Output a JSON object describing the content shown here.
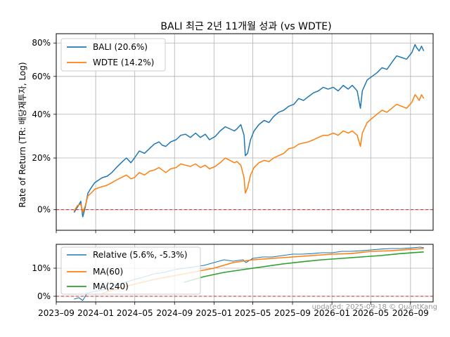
{
  "figure": {
    "title": "BALI 최근 2년 11개월 성과 (vs WDTE)",
    "watermark": "updated: 2025-09-18 © QuantKang"
  },
  "chart_data": [
    {
      "type": "line",
      "panel": "main",
      "ylabel": "Rate of Return (TR: 배당재투자, Log)",
      "yscale": "log(1+r)",
      "ylim": [
        -0.07,
        0.86
      ],
      "yticks": [
        0,
        0.2,
        0.4,
        0.6,
        0.8
      ],
      "ytick_labels": [
        "0%",
        "20%",
        "40%",
        "60%",
        "80%"
      ],
      "grid": true,
      "legend_position": "upper-left",
      "reference_line": {
        "y": 0,
        "color": "#d62728",
        "style": "dashed"
      },
      "series": [
        {
          "name": "BALI (20.6%)",
          "color": "#1f77b4",
          "x": [
            "2023-10-26",
            "2023-11-06",
            "2023-11-16",
            "2023-11-22",
            "2023-11-30",
            "2023-12-08",
            "2023-12-18",
            "2023-12-29",
            "2024-01-10",
            "2024-01-22",
            "2024-02-05",
            "2024-02-20",
            "2024-03-05",
            "2024-03-20",
            "2024-04-05",
            "2024-04-19",
            "2024-04-30",
            "2024-05-15",
            "2024-05-31",
            "2024-06-15",
            "2024-06-30",
            "2024-07-15",
            "2024-07-25",
            "2024-08-05",
            "2024-08-20",
            "2024-09-06",
            "2024-09-20",
            "2024-10-05",
            "2024-10-20",
            "2024-11-05",
            "2024-11-20",
            "2024-12-05",
            "2024-12-18",
            "2025-01-05",
            "2025-01-20",
            "2025-02-05",
            "2025-02-19",
            "2025-03-05",
            "2025-03-13",
            "2025-03-25",
            "2025-04-04",
            "2025-04-08",
            "2025-04-15",
            "2025-04-24",
            "2025-05-05",
            "2025-05-20",
            "2025-06-05",
            "2025-06-20",
            "2025-07-05",
            "2025-07-20",
            "2025-08-05",
            "2025-08-20",
            "2025-09-05",
            "2025-09-20",
            "2025-10-05",
            "2025-10-20",
            "2025-11-05",
            "2025-11-20",
            "2025-12-05",
            "2025-12-20",
            "2026-01-05",
            "2026-01-20",
            "2026-02-05",
            "2026-02-20",
            "2026-03-05",
            "2026-03-20",
            "2026-03-30",
            "2026-04-05",
            "2026-04-20",
            "2026-05-05",
            "2026-05-20",
            "2026-06-05",
            "2026-06-20",
            "2026-07-05",
            "2026-07-20",
            "2026-08-05",
            "2026-08-20",
            "2026-09-05",
            "2026-09-15",
            "2026-09-20",
            "2026-09-28",
            "2026-10-05",
            "2026-10-12"
          ],
          "values": [
            -0.01,
            0.01,
            0.03,
            -0.025,
            0.01,
            0.06,
            0.08,
            0.1,
            0.11,
            0.12,
            0.125,
            0.14,
            0.16,
            0.18,
            0.2,
            0.18,
            0.2,
            0.23,
            0.22,
            0.24,
            0.26,
            0.27,
            0.255,
            0.25,
            0.27,
            0.28,
            0.3,
            0.305,
            0.29,
            0.31,
            0.29,
            0.305,
            0.28,
            0.295,
            0.32,
            0.34,
            0.33,
            0.32,
            0.33,
            0.35,
            0.3,
            0.21,
            0.22,
            0.28,
            0.32,
            0.35,
            0.37,
            0.36,
            0.39,
            0.41,
            0.42,
            0.44,
            0.45,
            0.48,
            0.47,
            0.49,
            0.51,
            0.52,
            0.54,
            0.53,
            0.54,
            0.52,
            0.55,
            0.53,
            0.55,
            0.52,
            0.43,
            0.52,
            0.58,
            0.6,
            0.62,
            0.65,
            0.64,
            0.68,
            0.72,
            0.71,
            0.7,
            0.74,
            0.79,
            0.77,
            0.75,
            0.78,
            0.75
          ]
        },
        {
          "name": "WDTE (14.2%)",
          "color": "#ff7f0e",
          "x": [
            "2023-10-26",
            "2023-11-06",
            "2023-11-16",
            "2023-11-22",
            "2023-11-30",
            "2023-12-08",
            "2023-12-18",
            "2023-12-29",
            "2024-01-10",
            "2024-01-22",
            "2024-02-05",
            "2024-02-20",
            "2024-03-05",
            "2024-03-20",
            "2024-04-05",
            "2024-04-19",
            "2024-04-30",
            "2024-05-15",
            "2024-05-31",
            "2024-06-15",
            "2024-06-30",
            "2024-07-15",
            "2024-07-25",
            "2024-08-05",
            "2024-08-20",
            "2024-09-06",
            "2024-09-20",
            "2024-10-05",
            "2024-10-20",
            "2024-11-05",
            "2024-11-20",
            "2024-12-05",
            "2024-12-18",
            "2025-01-05",
            "2025-01-20",
            "2025-02-05",
            "2025-02-19",
            "2025-03-05",
            "2025-03-13",
            "2025-03-25",
            "2025-04-04",
            "2025-04-08",
            "2025-04-15",
            "2025-04-24",
            "2025-05-05",
            "2025-05-20",
            "2025-06-05",
            "2025-06-20",
            "2025-07-05",
            "2025-07-20",
            "2025-08-05",
            "2025-08-20",
            "2025-09-05",
            "2025-09-20",
            "2025-10-05",
            "2025-10-20",
            "2025-11-05",
            "2025-11-20",
            "2025-12-05",
            "2025-12-20",
            "2026-01-05",
            "2026-01-20",
            "2026-02-05",
            "2026-02-20",
            "2026-03-05",
            "2026-03-20",
            "2026-03-30",
            "2026-04-05",
            "2026-04-20",
            "2026-05-05",
            "2026-05-20",
            "2026-06-05",
            "2026-06-20",
            "2026-07-05",
            "2026-07-20",
            "2026-08-05",
            "2026-08-20",
            "2026-09-05",
            "2026-09-15",
            "2026-09-20",
            "2026-09-28",
            "2026-10-05",
            "2026-10-12"
          ],
          "values": [
            -0.005,
            0.015,
            0.02,
            -0.01,
            0.015,
            0.05,
            0.06,
            0.075,
            0.08,
            0.085,
            0.09,
            0.1,
            0.11,
            0.12,
            0.13,
            0.115,
            0.12,
            0.14,
            0.13,
            0.145,
            0.15,
            0.16,
            0.15,
            0.14,
            0.155,
            0.16,
            0.175,
            0.17,
            0.165,
            0.175,
            0.16,
            0.17,
            0.155,
            0.165,
            0.18,
            0.2,
            0.19,
            0.18,
            0.185,
            0.17,
            0.12,
            0.06,
            0.08,
            0.13,
            0.16,
            0.18,
            0.19,
            0.185,
            0.2,
            0.21,
            0.22,
            0.24,
            0.245,
            0.26,
            0.265,
            0.27,
            0.28,
            0.29,
            0.3,
            0.3,
            0.31,
            0.3,
            0.32,
            0.31,
            0.32,
            0.3,
            0.25,
            0.31,
            0.36,
            0.38,
            0.4,
            0.42,
            0.41,
            0.43,
            0.45,
            0.44,
            0.43,
            0.46,
            0.5,
            0.49,
            0.47,
            0.5,
            0.48
          ]
        }
      ]
    },
    {
      "type": "line",
      "panel": "relative",
      "ylim": [
        -0.02,
        0.185
      ],
      "yticks": [
        0,
        0.1
      ],
      "ytick_labels": [
        "0%",
        "10%"
      ],
      "xlim": [
        "2023-09-01",
        "2026-11-10"
      ],
      "xticks": [
        "2023-09-01",
        "2024-01-01",
        "2024-05-01",
        "2024-09-01",
        "2025-01-01",
        "2025-05-01",
        "2025-09-01",
        "2026-01-01",
        "2026-05-01",
        "2026-09-01"
      ],
      "xtick_labels": [
        "2023–09",
        "2024–01",
        "2024–05",
        "2024–09",
        "2025–01",
        "2025–05",
        "2025–09",
        "2026–01",
        "2026–05",
        "2026–09"
      ],
      "grid": true,
      "legend_position": "upper-left",
      "reference_line": {
        "y": 0,
        "color": "#d62728",
        "style": "dashed"
      },
      "series": [
        {
          "name": "Relative (5.6%, -5.3%)",
          "color": "#1f77b4",
          "x": [
            "2023-10-26",
            "2023-11-10",
            "2023-11-22",
            "2023-12-05",
            "2023-12-20",
            "2024-01-10",
            "2024-02-01",
            "2024-03-01",
            "2024-04-01",
            "2024-05-01",
            "2024-06-01",
            "2024-07-01",
            "2024-08-01",
            "2024-09-01",
            "2024-10-01",
            "2024-11-01",
            "2024-12-01",
            "2025-01-01",
            "2025-02-01",
            "2025-03-01",
            "2025-04-01",
            "2025-04-10",
            "2025-05-01",
            "2025-06-01",
            "2025-07-01",
            "2025-08-01",
            "2025-09-01",
            "2025-10-01",
            "2025-11-01",
            "2025-12-01",
            "2026-01-01",
            "2026-02-01",
            "2026-03-01",
            "2026-04-01",
            "2026-05-01",
            "2026-06-01",
            "2026-07-01",
            "2026-08-01",
            "2026-09-01",
            "2026-10-01",
            "2026-10-12"
          ],
          "values": [
            -0.01,
            -0.005,
            -0.015,
            0.01,
            0.015,
            0.02,
            0.025,
            0.04,
            0.05,
            0.06,
            0.07,
            0.08,
            0.085,
            0.095,
            0.1,
            0.105,
            0.11,
            0.12,
            0.13,
            0.125,
            0.13,
            0.12,
            0.135,
            0.14,
            0.14,
            0.145,
            0.15,
            0.15,
            0.152,
            0.155,
            0.155,
            0.16,
            0.16,
            0.162,
            0.165,
            0.168,
            0.17,
            0.17,
            0.172,
            0.175,
            0.173
          ]
        },
        {
          "name": "MA(60)",
          "color": "#ff7f0e",
          "x": [
            "2024-01-20",
            "2024-04-01",
            "2024-07-01",
            "2024-10-01",
            "2025-01-01",
            "2025-03-01",
            "2025-05-01",
            "2025-07-01",
            "2025-09-01",
            "2025-11-01",
            "2026-01-01",
            "2026-03-01",
            "2026-05-01",
            "2026-07-01",
            "2026-09-01",
            "2026-10-12"
          ],
          "values": [
            0.01,
            0.035,
            0.06,
            0.08,
            0.1,
            0.12,
            0.13,
            0.135,
            0.14,
            0.145,
            0.15,
            0.152,
            0.16,
            0.162,
            0.167,
            0.17
          ]
        },
        {
          "name": "MA(240)",
          "color": "#2ca02c",
          "x": [
            "2024-10-01",
            "2024-12-01",
            "2025-02-01",
            "2025-04-01",
            "2025-06-01",
            "2025-08-01",
            "2025-10-01",
            "2025-12-01",
            "2026-02-01",
            "2026-04-01",
            "2026-06-01",
            "2026-08-01",
            "2026-10-12"
          ],
          "values": [
            0.05,
            0.07,
            0.085,
            0.095,
            0.105,
            0.115,
            0.123,
            0.13,
            0.135,
            0.14,
            0.145,
            0.152,
            0.158
          ]
        }
      ]
    }
  ]
}
